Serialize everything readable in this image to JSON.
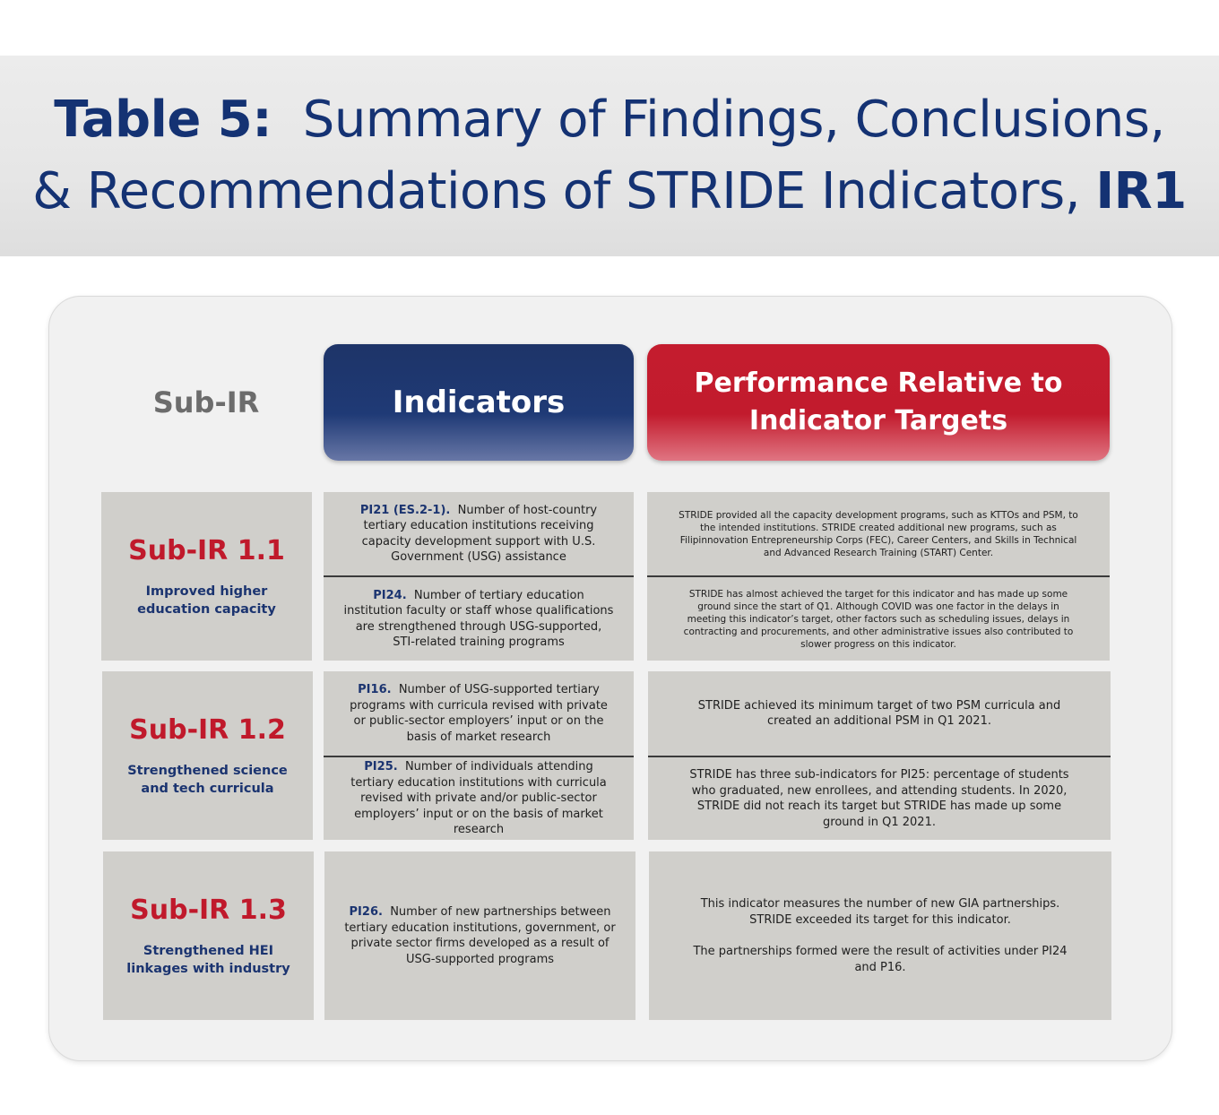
{
  "title": {
    "label": "Table 5:",
    "line1_rest": "Summary of Findings, Conclusions,",
    "line2_text": "& Recommendations of STRIDE Indicators,",
    "line2_bold": "IR1"
  },
  "headers": {
    "subir": "Sub-IR",
    "indicators": "Indicators",
    "performance_line1": "Performance Relative to",
    "performance_line2": "Indicator Targets"
  },
  "rows": [
    {
      "code": "Sub-IR 1.1",
      "desc": "Improved higher education capacity",
      "indicators": [
        {
          "id": "PI21 (ES.2-1).",
          "text": "Number of host-country tertiary education institutions receiving capacity development support with U.S. Government (USG) assistance"
        },
        {
          "id": "PI24.",
          "text": "Number of tertiary education institution faculty or staff whose qualifications are strengthened through USG-supported, STI-related training programs"
        }
      ],
      "performance": [
        "STRIDE provided all the capacity development programs, such as KTTOs and PSM, to the intended institutions. STRIDE created additional new programs, such as Filipinnovation Entrepreneurship Corps (FEC), Career Centers, and Skills in Technical and Advanced Research Training (START) Center.",
        "STRIDE has almost achieved the target for this indicator and has made up some ground since the start of Q1. Although COVID was one factor in the delays in meeting this indicator’s target, other factors such as scheduling issues, delays in contracting and procurements, and other administrative issues also contributed to slower progress on this indicator."
      ]
    },
    {
      "code": "Sub-IR 1.2",
      "desc": "Strengthened science and tech curricula",
      "indicators": [
        {
          "id": "PI16.",
          "text": "Number of USG-supported tertiary programs with curricula revised with private or public-sector employers’ input or on the basis of market research"
        },
        {
          "id": "PI25.",
          "text": "Number of individuals attending tertiary education institutions with curricula revised with private and/or public-sector employers’ input or on the basis of market research"
        }
      ],
      "performance": [
        "STRIDE achieved its minimum target of two PSM curricula and created an additional PSM in Q1 2021.",
        "STRIDE has three sub-indicators for PI25: percentage of students who graduated, new enrollees, and attending students. In 2020, STRIDE did not reach its target but STRIDE has made up some ground in Q1 2021."
      ]
    },
    {
      "code": "Sub-IR 1.3",
      "desc": "Strengthened HEI linkages with industry",
      "indicators": [
        {
          "id": "PI26.",
          "text": "Number of new partnerships between tertiary education institutions, government, or private sector firms developed as a result of USG-supported programs"
        }
      ],
      "performance": [
        "This indicator measures the number of new GIA partnerships. STRIDE exceeded its target for this indicator.",
        "The partnerships formed were the result of activities under PI24 and P16."
      ]
    }
  ]
}
